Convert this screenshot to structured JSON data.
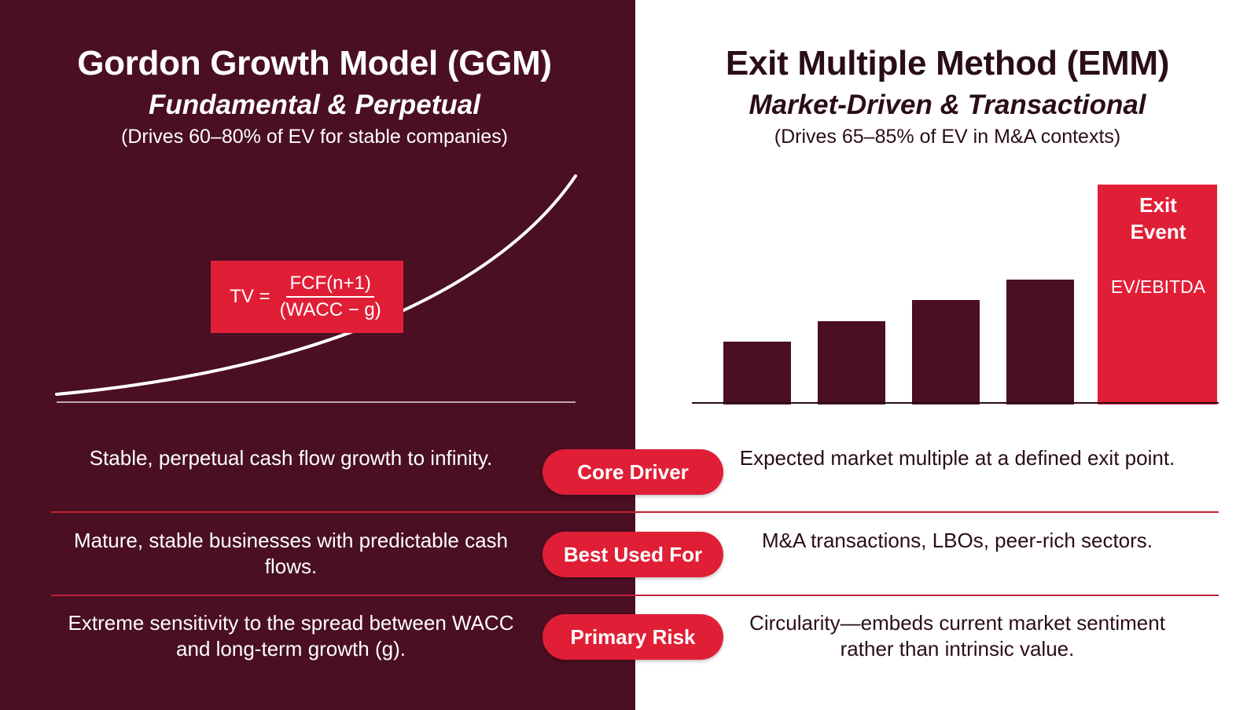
{
  "colors": {
    "left_background": "#4a0f22",
    "accent_red": "#e01f36",
    "divider": "#c22236",
    "dark_text": "#2a0d18",
    "bar_dark": "#4a0f22",
    "white": "#ffffff"
  },
  "ggm": {
    "title": "Gordon Growth Model (GGM)",
    "subtitle": "Fundamental & Perpetual",
    "note": "(Drives 60–80% of EV for stable companies)",
    "formula": {
      "lhs": "TV =",
      "numerator": "FCF(n+1)",
      "denominator": "(WACC − g)"
    }
  },
  "emm": {
    "title": "Exit Multiple Method (EMM)",
    "subtitle": "Market-Driven & Transactional",
    "note": "(Drives 65–85% of EV in M&A contexts)",
    "exit_label_line1": "Exit",
    "exit_label_line2": "Event",
    "exit_metric": "EV/EBITDA"
  },
  "chart_data": {
    "type": "bar",
    "title": "",
    "xlabel": "",
    "ylabel": "",
    "values": [
      0.27,
      0.36,
      0.45,
      0.54,
      0.95
    ],
    "highlight_index": 4,
    "ylim": [
      0,
      1
    ]
  },
  "comparison": {
    "rows": [
      {
        "label": "Core Driver",
        "ggm": "Stable, perpetual cash flow growth to infinity.",
        "emm": "Expected market multiple at a defined exit point."
      },
      {
        "label": "Best Used For",
        "ggm": "Mature, stable businesses with predictable cash flows.",
        "emm": "M&A transactions, LBOs, peer-rich sectors."
      },
      {
        "label": "Primary Risk",
        "ggm": "Extreme sensitivity to the spread between WACC and long-term growth (g).",
        "emm": "Circularity—embeds current market sentiment rather than intrinsic value."
      }
    ]
  }
}
